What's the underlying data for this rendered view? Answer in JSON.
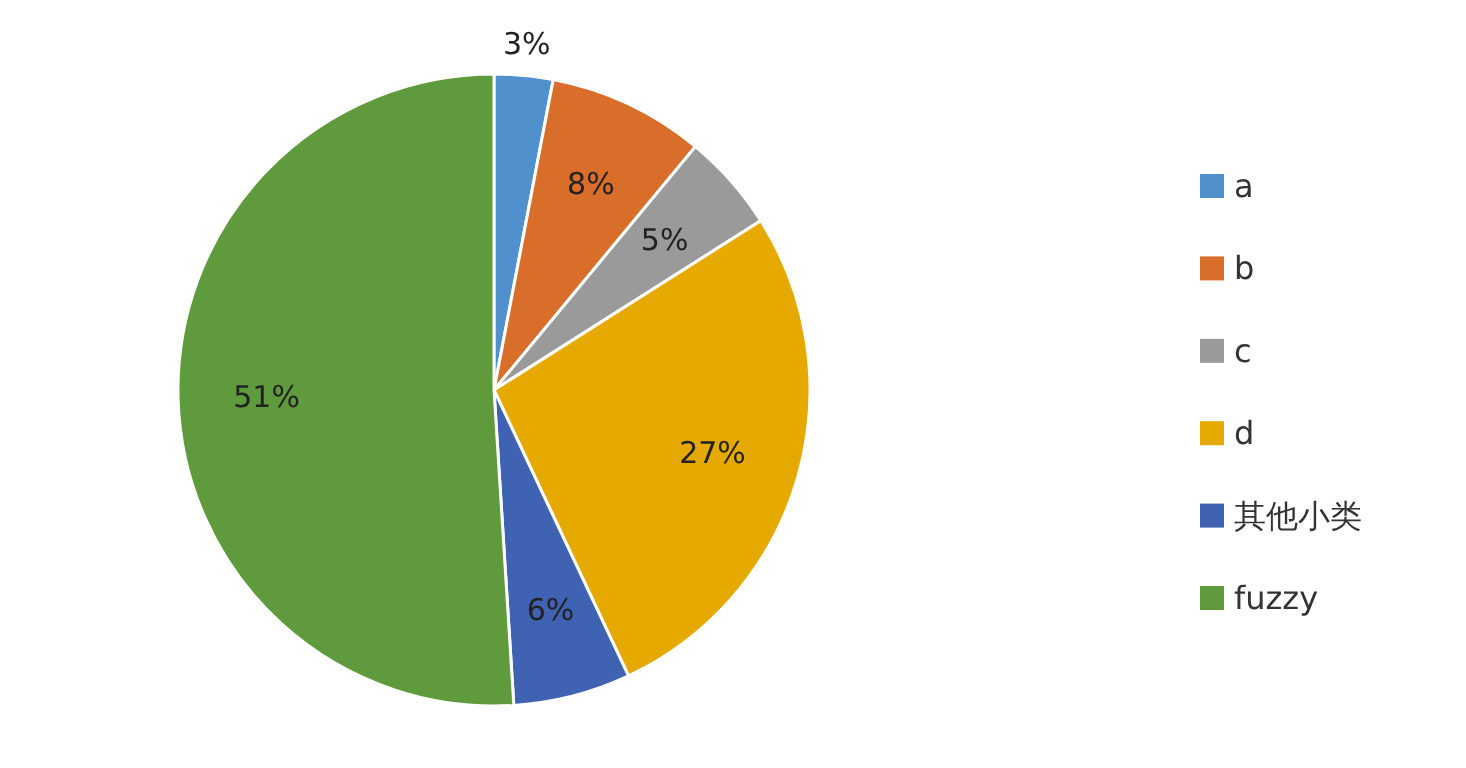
{
  "chart_data": {
    "type": "pie",
    "categories": [
      "a",
      "b",
      "c",
      "d",
      "其他小类",
      "fuzzy"
    ],
    "values": [
      3,
      8,
      5,
      27,
      6,
      51
    ],
    "value_labels": [
      "3%",
      "8%",
      "5%",
      "27%",
      "6%",
      "51%"
    ],
    "colors": [
      "#5090cd",
      "#d96d2a",
      "#9a9a9a",
      "#e5a900",
      "#3f62b2",
      "#5f9b3c"
    ],
    "legend": "right"
  }
}
